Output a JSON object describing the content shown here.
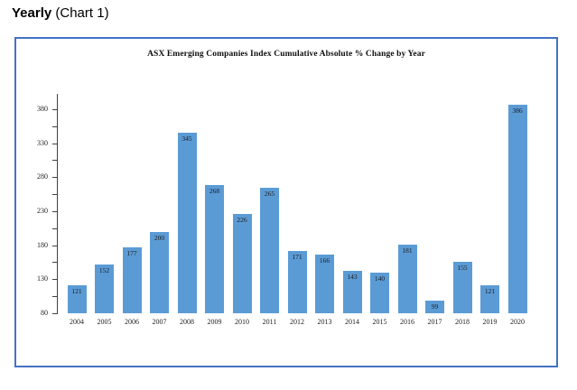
{
  "header": {
    "bold": "Yearly",
    "rest": " (Chart 1)"
  },
  "chart_data": {
    "type": "bar",
    "title": "ASX Emerging Companies Index Cumulative Absolute % Change by Year",
    "categories": [
      "2004",
      "2005",
      "2006",
      "2007",
      "2008",
      "2009",
      "2010",
      "2011",
      "2012",
      "2013",
      "2014",
      "2015",
      "2016",
      "2017",
      "2018",
      "2019",
      "2020"
    ],
    "values": [
      121,
      152,
      177,
      200,
      345,
      268,
      226,
      265,
      171,
      166,
      143,
      140,
      181,
      99,
      155,
      121,
      386
    ],
    "xlabel": "",
    "ylabel": "",
    "ylim": [
      80,
      401
    ],
    "yticks": [
      80,
      130,
      180,
      230,
      280,
      330,
      380
    ],
    "minor_ticks_between_majors": true,
    "grid": false,
    "legend": "none",
    "data_labels": "inside-end",
    "bar_color": "#5B9BD5",
    "axis_color": "#404040",
    "frame_border_color": "#4472C4"
  }
}
